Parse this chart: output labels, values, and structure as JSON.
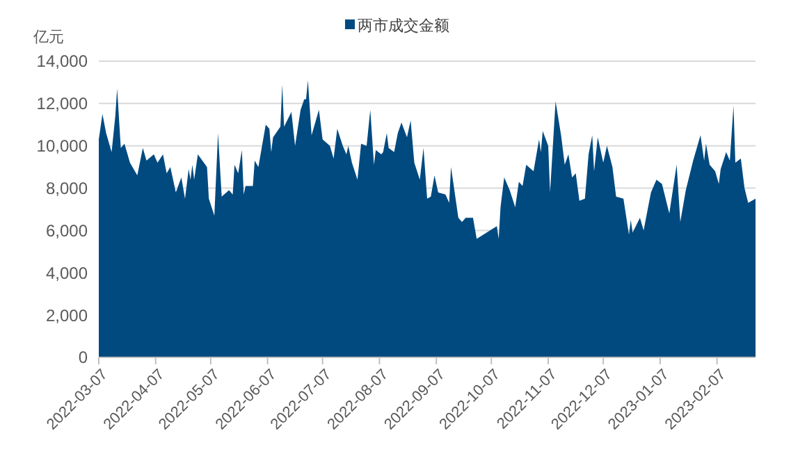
{
  "chart_data": {
    "type": "area",
    "ylabel": "亿元",
    "legend": "top",
    "grid": "y",
    "xlim": [
      "2022-03-07",
      "2023-02-28"
    ],
    "xticks": [
      "2022-03-07",
      "2022-04-07",
      "2022-05-07",
      "2022-06-07",
      "2022-07-07",
      "2022-08-07",
      "2022-09-07",
      "2022-10-07",
      "2022-11-07",
      "2022-12-07",
      "2023-01-07",
      "2023-02-07"
    ],
    "ylim": [
      0,
      14000
    ],
    "yticks": [
      0,
      {
        "value": 2000,
        "label": "2,000"
      },
      {
        "value": 4000,
        "label": "4,000"
      },
      {
        "value": 6000,
        "label": "6,000"
      },
      {
        "value": 8000,
        "label": "8,000"
      },
      {
        "value": 10000,
        "label": "10,000"
      },
      {
        "value": 12000,
        "label": "12,000"
      },
      {
        "value": 14000,
        "label": "14,000"
      }
    ],
    "series": [
      {
        "name": "两市成交金额",
        "color": "#004a80",
        "x": [
          "2022-03-07",
          "2022-03-09",
          "2022-03-11",
          "2022-03-14",
          "2022-03-16",
          "2022-03-17",
          "2022-03-19",
          "2022-03-21",
          "2022-03-24",
          "2022-03-28",
          "2022-03-31",
          "2022-04-02",
          "2022-04-06",
          "2022-04-08",
          "2022-04-11",
          "2022-04-13",
          "2022-04-15",
          "2022-04-18",
          "2022-04-21",
          "2022-04-23",
          "2022-04-25",
          "2022-04-26",
          "2022-04-27",
          "2022-04-28",
          "2022-04-30",
          "2022-05-05",
          "2022-05-06",
          "2022-05-09",
          "2022-05-11",
          "2022-05-13",
          "2022-05-17",
          "2022-05-19",
          "2022-05-20",
          "2022-05-22",
          "2022-05-24",
          "2022-05-25",
          "2022-05-26",
          "2022-05-30",
          "2022-05-31",
          "2022-06-02",
          "2022-06-06",
          "2022-06-08",
          "2022-06-09",
          "2022-06-10",
          "2022-06-14",
          "2022-06-15",
          "2022-06-16",
          "2022-06-20",
          "2022-06-22",
          "2022-06-25",
          "2022-06-27",
          "2022-06-28",
          "2022-06-29",
          "2022-07-01",
          "2022-07-05",
          "2022-07-07",
          "2022-07-11",
          "2022-07-13",
          "2022-07-15",
          "2022-07-18",
          "2022-07-20",
          "2022-07-21",
          "2022-07-23",
          "2022-07-26",
          "2022-07-28",
          "2022-07-31",
          "2022-08-02",
          "2022-08-04",
          "2022-08-05",
          "2022-08-08",
          "2022-08-09",
          "2022-08-11",
          "2022-08-12",
          "2022-08-15",
          "2022-08-17",
          "2022-08-19",
          "2022-08-22",
          "2022-08-24",
          "2022-08-26",
          "2022-08-29",
          "2022-08-31",
          "2022-09-02",
          "2022-09-04",
          "2022-09-06",
          "2022-09-08",
          "2022-09-12",
          "2022-09-14",
          "2022-09-15",
          "2022-09-19",
          "2022-09-21",
          "2022-09-23",
          "2022-09-27",
          "2022-09-29",
          "2022-10-10",
          "2022-10-11",
          "2022-10-12",
          "2022-10-14",
          "2022-10-17",
          "2022-10-20",
          "2022-10-22",
          "2022-10-24",
          "2022-10-26",
          "2022-10-30",
          "2022-11-02",
          "2022-11-03",
          "2022-11-04",
          "2022-11-07",
          "2022-11-08",
          "2022-11-11",
          "2022-11-14",
          "2022-11-16",
          "2022-11-18",
          "2022-11-20",
          "2022-11-22",
          "2022-11-24",
          "2022-11-27",
          "2022-11-29",
          "2022-12-01",
          "2022-12-02",
          "2022-12-04",
          "2022-12-07",
          "2022-12-09",
          "2022-12-12",
          "2022-12-14",
          "2022-12-18",
          "2022-12-21",
          "2022-12-22",
          "2022-12-23",
          "2022-12-27",
          "2022-12-29",
          "2023-01-02",
          "2023-01-05",
          "2023-01-08",
          "2023-01-10",
          "2023-01-12",
          "2023-01-16",
          "2023-01-18",
          "2023-01-21",
          "2023-01-25",
          "2023-01-29",
          "2023-01-31",
          "2023-02-01",
          "2023-02-03",
          "2023-02-06",
          "2023-02-08",
          "2023-02-09",
          "2023-02-12",
          "2023-02-14",
          "2023-02-16",
          "2023-02-17",
          "2023-02-20",
          "2023-02-22",
          "2023-02-24",
          "2023-02-28"
        ],
        "values": [
          10300,
          11500,
          10600,
          9700,
          11400,
          12700,
          9900,
          10100,
          9200,
          8600,
          9900,
          9300,
          9600,
          9200,
          9600,
          8700,
          9000,
          7800,
          8500,
          7500,
          8900,
          8400,
          9100,
          8400,
          9600,
          9000,
          7500,
          6700,
          10600,
          7600,
          7900,
          7700,
          9100,
          8700,
          9800,
          7700,
          8100,
          8100,
          9300,
          9000,
          11000,
          10800,
          9700,
          10400,
          10900,
          12900,
          10900,
          11600,
          10000,
          11700,
          12200,
          12200,
          13100,
          10500,
          11700,
          10300,
          10000,
          9400,
          10800,
          10000,
          9600,
          10000,
          9200,
          8400,
          10100,
          10000,
          11700,
          9100,
          9800,
          9600,
          9700,
          10600,
          9900,
          9700,
          10600,
          11100,
          10400,
          11200,
          9200,
          8400,
          9900,
          7500,
          7600,
          8600,
          7800,
          7700,
          7300,
          9000,
          6600,
          6400,
          6600,
          6600,
          5600,
          6200,
          5600,
          7100,
          8500,
          7900,
          7100,
          8300,
          8100,
          9100,
          8800,
          10300,
          9700,
          10700,
          10000,
          7800,
          12100,
          10500,
          9100,
          9600,
          8500,
          8700,
          7400,
          7500,
          9600,
          10500,
          8800,
          10400,
          9200,
          10000,
          9000,
          7600,
          7500,
          5800,
          6500,
          5900,
          6600,
          6000,
          7800,
          8400,
          8200,
          7500,
          6800,
          9100,
          6400,
          7900,
          9300,
          10500,
          9300,
          10100,
          9100,
          8800,
          8200,
          8900,
          9700,
          9300,
          11900,
          9200,
          9400,
          8000,
          7300,
          7500
        ]
      }
    ]
  }
}
